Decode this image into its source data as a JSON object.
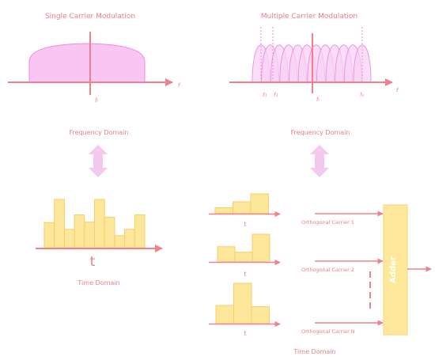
{
  "colors": {
    "axis": "#f0808a",
    "label": "#f07d86",
    "spectrum_fill": "#f9c6f3",
    "spectrum_stroke": "#ee88e6",
    "carrier_fill": "#f8d2f4",
    "carrier_stroke": "#ea8ee0",
    "arrow": "#f5c8f0",
    "bar_fill": "#fde79a",
    "bar_stroke": "#f5cf6a",
    "adder_fill": "#fde89c"
  },
  "single": {
    "title": "Single Carrier Modulation",
    "f_label": "f",
    "fc_label": "fₗ",
    "domain_freq": "Frequency Domain",
    "domain_time": "Time Domain",
    "t_label": "t",
    "bar_levels": [
      0.52,
      1.0,
      0.38,
      0.68,
      0.53,
      1.0,
      0.63,
      0.25,
      0.38,
      0.68
    ]
  },
  "multi": {
    "title": "Multiple Carrier Modulation",
    "f_label": "f",
    "tick_labels": [
      "f₁",
      "f₁",
      "fₗ",
      "fₙ"
    ],
    "carrier_count": 12,
    "domain_freq": "Frequency Domain",
    "domain_time": "Time Domain",
    "t_label": "t",
    "groups": [
      {
        "levels": [
          0.3,
          0.6,
          1.0
        ],
        "carrier": "Orthogonal Carrier 1"
      },
      {
        "levels": [
          0.55,
          0.35,
          1.0
        ],
        "carrier": "Orthogonal Carrier 2"
      },
      {
        "levels": [
          0.45,
          1.0,
          0.42
        ],
        "carrier": "Orthogonal Carrier N"
      }
    ],
    "adder_label": "Adder"
  }
}
